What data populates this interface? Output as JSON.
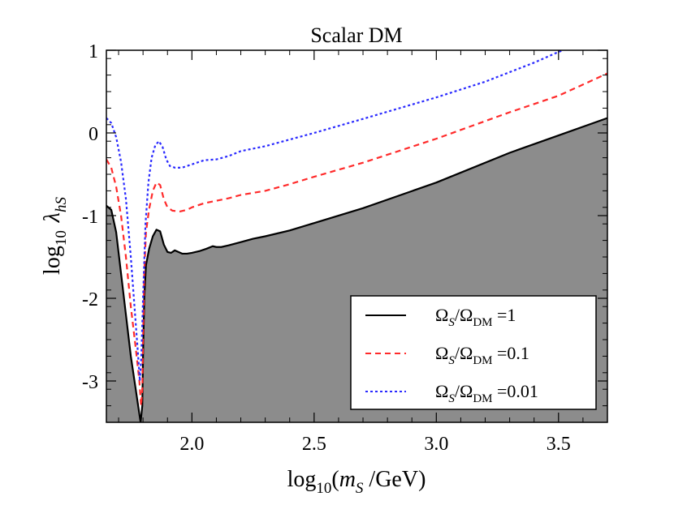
{
  "chart_data": {
    "type": "line",
    "title": "Scalar DM",
    "xlabel": "log10(mS /GeV)",
    "ylabel": "log10 λhS",
    "xlim": [
      1.65,
      3.7
    ],
    "ylim": [
      -3.5,
      1.0
    ],
    "x_ticks": [
      2.0,
      2.5,
      3.0,
      3.5
    ],
    "x_tick_labels": [
      "2.0",
      "2.5",
      "3.0",
      "3.5"
    ],
    "y_ticks": [
      1,
      0,
      -1,
      -2,
      -3
    ],
    "y_tick_labels": [
      "1",
      "0",
      "-1",
      "-2",
      "-3"
    ],
    "grid": false,
    "legend_position": "lower-right",
    "series": [
      {
        "name": "ΩS/ΩDM =1",
        "style": "solid",
        "color": "#000000",
        "fill_below": "#8c8c8c",
        "points": [
          [
            1.65,
            -0.88
          ],
          [
            1.67,
            -0.93
          ],
          [
            1.69,
            -1.2
          ],
          [
            1.71,
            -1.7
          ],
          [
            1.73,
            -2.2
          ],
          [
            1.75,
            -2.7
          ],
          [
            1.77,
            -3.1
          ],
          [
            1.785,
            -3.4
          ],
          [
            1.79,
            -3.5
          ],
          [
            1.797,
            -3.3
          ],
          [
            1.8,
            -2.7
          ],
          [
            1.805,
            -2.0
          ],
          [
            1.812,
            -1.6
          ],
          [
            1.825,
            -1.4
          ],
          [
            1.84,
            -1.25
          ],
          [
            1.855,
            -1.17
          ],
          [
            1.87,
            -1.19
          ],
          [
            1.885,
            -1.35
          ],
          [
            1.9,
            -1.44
          ],
          [
            1.915,
            -1.45
          ],
          [
            1.93,
            -1.42
          ],
          [
            1.945,
            -1.44
          ],
          [
            1.96,
            -1.46
          ],
          [
            1.98,
            -1.46
          ],
          [
            2.0,
            -1.45
          ],
          [
            2.03,
            -1.43
          ],
          [
            2.06,
            -1.4
          ],
          [
            2.085,
            -1.37
          ],
          [
            2.1,
            -1.38
          ],
          [
            2.12,
            -1.38
          ],
          [
            2.15,
            -1.36
          ],
          [
            2.2,
            -1.32
          ],
          [
            2.25,
            -1.28
          ],
          [
            2.3,
            -1.25
          ],
          [
            2.4,
            -1.18
          ],
          [
            2.5,
            -1.09
          ],
          [
            2.7,
            -0.91
          ],
          [
            3.0,
            -0.6
          ],
          [
            3.3,
            -0.24
          ],
          [
            3.5,
            -0.03
          ],
          [
            3.7,
            0.18
          ]
        ]
      },
      {
        "name": "ΩS/ΩDM =0.1",
        "style": "dashed",
        "color": "#ff2a2a",
        "points": [
          [
            1.65,
            -0.32
          ],
          [
            1.67,
            -0.42
          ],
          [
            1.69,
            -0.65
          ],
          [
            1.71,
            -1.0
          ],
          [
            1.73,
            -1.5
          ],
          [
            1.75,
            -2.1
          ],
          [
            1.77,
            -2.6
          ],
          [
            1.785,
            -3.0
          ],
          [
            1.792,
            -3.3
          ],
          [
            1.797,
            -3.1
          ],
          [
            1.8,
            -2.5
          ],
          [
            1.805,
            -1.7
          ],
          [
            1.812,
            -1.2
          ],
          [
            1.825,
            -0.92
          ],
          [
            1.84,
            -0.7
          ],
          [
            1.855,
            -0.6
          ],
          [
            1.87,
            -0.63
          ],
          [
            1.885,
            -0.8
          ],
          [
            1.9,
            -0.9
          ],
          [
            1.92,
            -0.94
          ],
          [
            1.95,
            -0.95
          ],
          [
            1.98,
            -0.93
          ],
          [
            2.0,
            -0.9
          ],
          [
            2.05,
            -0.85
          ],
          [
            2.1,
            -0.82
          ],
          [
            2.15,
            -0.79
          ],
          [
            2.2,
            -0.75
          ],
          [
            2.3,
            -0.7
          ],
          [
            2.4,
            -0.62
          ],
          [
            2.5,
            -0.53
          ],
          [
            2.7,
            -0.36
          ],
          [
            3.0,
            -0.07
          ],
          [
            3.3,
            0.25
          ],
          [
            3.5,
            0.45
          ],
          [
            3.7,
            0.72
          ]
        ]
      },
      {
        "name": "ΩS/ΩDM =0.01",
        "style": "dotted",
        "color": "#2a2aff",
        "points": [
          [
            1.65,
            0.18
          ],
          [
            1.67,
            0.12
          ],
          [
            1.69,
            -0.05
          ],
          [
            1.71,
            -0.35
          ],
          [
            1.73,
            -0.8
          ],
          [
            1.75,
            -1.5
          ],
          [
            1.77,
            -2.3
          ],
          [
            1.78,
            -2.7
          ],
          [
            1.787,
            -3.0
          ],
          [
            1.793,
            -2.7
          ],
          [
            1.8,
            -2.0
          ],
          [
            1.81,
            -1.1
          ],
          [
            1.822,
            -0.6
          ],
          [
            1.835,
            -0.3
          ],
          [
            1.85,
            -0.15
          ],
          [
            1.865,
            -0.1
          ],
          [
            1.88,
            -0.17
          ],
          [
            1.895,
            -0.32
          ],
          [
            1.91,
            -0.4
          ],
          [
            1.93,
            -0.42
          ],
          [
            1.96,
            -0.42
          ],
          [
            2.0,
            -0.38
          ],
          [
            2.05,
            -0.33
          ],
          [
            2.1,
            -0.32
          ],
          [
            2.15,
            -0.28
          ],
          [
            2.2,
            -0.22
          ],
          [
            2.3,
            -0.16
          ],
          [
            2.4,
            -0.08
          ],
          [
            2.5,
            0.0
          ],
          [
            2.7,
            0.17
          ],
          [
            3.0,
            0.43
          ],
          [
            3.2,
            0.62
          ],
          [
            3.4,
            0.85
          ],
          [
            3.5,
            0.98
          ],
          [
            3.52,
            1.0
          ]
        ]
      }
    ]
  }
}
